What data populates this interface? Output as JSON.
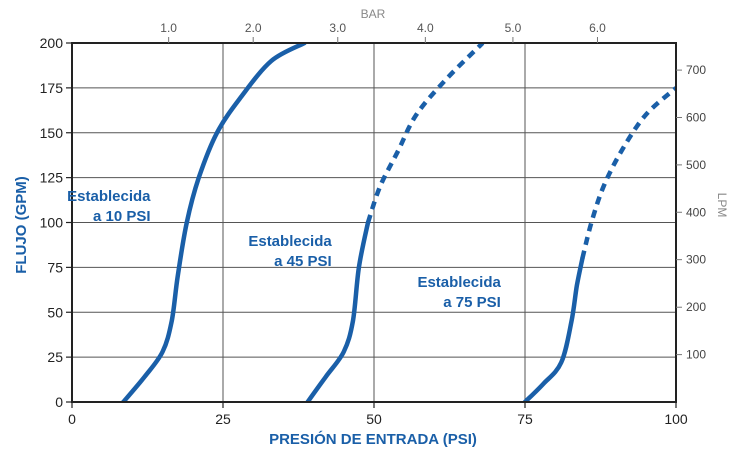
{
  "chart_data": {
    "type": "line",
    "xlabel": "PRESIÓN DE ENTRADA (PSI)",
    "ylabel": "FLUJO (GPM)",
    "x_top_label": "BAR",
    "y_right_label": "LPM",
    "xlim": [
      0,
      100
    ],
    "ylim": [
      0,
      200
    ],
    "x_ticks": [
      0,
      25,
      50,
      75,
      100
    ],
    "y_ticks": [
      0,
      25,
      50,
      75,
      100,
      125,
      150,
      175,
      200
    ],
    "x_top_ticks": [
      {
        "label": "1.0",
        "psi": 16
      },
      {
        "label": "2.0",
        "psi": 30
      },
      {
        "label": "3.0",
        "psi": 44
      },
      {
        "label": "4.0",
        "psi": 58.5
      },
      {
        "label": "5.0",
        "psi": 73
      },
      {
        "label": "6.0",
        "psi": 87
      }
    ],
    "y_right_ticks": [
      {
        "label": "100",
        "gpm": 26.4
      },
      {
        "label": "200",
        "gpm": 52.8
      },
      {
        "label": "300",
        "gpm": 79.3
      },
      {
        "label": "400",
        "gpm": 105.7
      },
      {
        "label": "500",
        "gpm": 132.1
      },
      {
        "label": "600",
        "gpm": 158.5
      },
      {
        "label": "700",
        "gpm": 184.9
      }
    ],
    "grid": true,
    "series": [
      {
        "name": "Establecida\na 10 PSI",
        "label_lines": [
          "Establecida",
          "a 10 PSI"
        ],
        "label_anchor": [
          13,
          112
        ],
        "solid": [
          [
            8.5,
            0
          ],
          [
            12,
            14
          ],
          [
            15,
            28
          ],
          [
            16.5,
            45
          ],
          [
            17.5,
            70
          ],
          [
            19,
            100
          ],
          [
            21,
            125
          ],
          [
            24,
            150
          ],
          [
            28,
            170
          ],
          [
            33,
            190
          ],
          [
            38.5,
            200
          ]
        ],
        "dashed": []
      },
      {
        "name": "Establecida\na 45 PSI",
        "label_lines": [
          "Establecida",
          "a 45 PSI"
        ],
        "label_anchor": [
          43,
          87
        ],
        "solid": [
          [
            39,
            0
          ],
          [
            42,
            14
          ],
          [
            45,
            28
          ],
          [
            46.5,
            45
          ],
          [
            47.5,
            75
          ],
          [
            49,
            100
          ]
        ],
        "dashed": [
          [
            49,
            100
          ],
          [
            51,
            120
          ],
          [
            54,
            140
          ],
          [
            57,
            160
          ],
          [
            62,
            180
          ],
          [
            68,
            200
          ]
        ]
      },
      {
        "name": "Establecida\na 75 PSI",
        "label_lines": [
          "Establecida",
          "a 75 PSI"
        ],
        "label_anchor": [
          71,
          64
        ],
        "solid": [
          [
            75,
            0
          ],
          [
            78,
            10
          ],
          [
            81,
            22
          ],
          [
            82.7,
            45
          ],
          [
            83.6,
            65
          ],
          [
            84.5,
            80
          ]
        ],
        "dashed": [
          [
            84.5,
            80
          ],
          [
            86,
            100
          ],
          [
            88,
            120
          ],
          [
            91,
            140
          ],
          [
            95,
            160
          ],
          [
            100,
            175
          ]
        ]
      }
    ]
  },
  "colors": {
    "series": "#1a5fa8",
    "axis_title": "#1a5fa8",
    "grid": "#555555",
    "frame": "#222222"
  }
}
